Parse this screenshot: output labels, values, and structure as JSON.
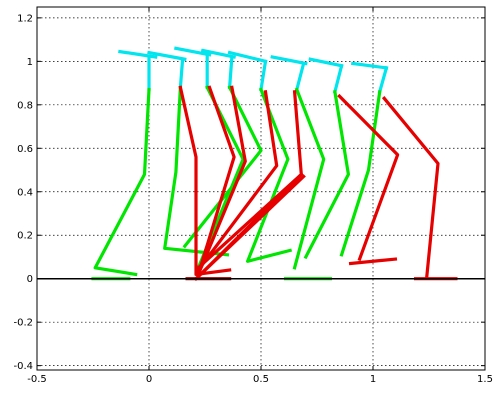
{
  "chart_data": {
    "type": "line",
    "title": "",
    "xlabel": "",
    "ylabel": "",
    "xlim": [
      -0.5,
      1.5
    ],
    "ylim": [
      -0.42,
      1.25
    ],
    "grid": true,
    "x_ticks": [
      "-0.5",
      "0",
      "0.5",
      "1",
      "1.5"
    ],
    "x_tick_values": [
      -0.5,
      0,
      0.5,
      1,
      1.5
    ],
    "y_ticks": [
      "-0.4",
      "-0.2",
      "0",
      "0.2",
      "0.4",
      "0.6",
      "0.8",
      "1",
      "1.2"
    ],
    "y_tick_values": [
      -0.4,
      -0.2,
      0,
      0.2,
      0.4,
      0.6,
      0.8,
      1,
      1.2
    ],
    "ground_line": {
      "y": 0,
      "color": "#000000"
    },
    "colors": {
      "torso": "#00e5ee",
      "leg_green": "#00e600",
      "leg_red": "#e60000",
      "foot_dark": "#a00000"
    },
    "series": [
      {
        "color": "#00e5ee",
        "segments": [
          [
            [
              -0.13,
              1.045
            ],
            [
              0.03,
              1.02
            ]
          ],
          [
            [
              0.0,
              1.02
            ],
            [
              0.0,
              0.87
            ]
          ],
          [
            [
              0.0,
              1.04
            ],
            [
              0.16,
              1.01
            ]
          ],
          [
            [
              0.15,
              1.01
            ],
            [
              0.14,
              0.88
            ]
          ],
          [
            [
              0.12,
              1.06
            ],
            [
              0.27,
              1.03
            ]
          ],
          [
            [
              0.26,
              1.03
            ],
            [
              0.26,
              0.88
            ]
          ],
          [
            [
              0.24,
              1.05
            ],
            [
              0.38,
              1.02
            ]
          ],
          [
            [
              0.37,
              1.02
            ],
            [
              0.36,
              0.88
            ]
          ],
          [
            [
              0.36,
              1.04
            ],
            [
              0.52,
              1.0
            ]
          ],
          [
            [
              0.52,
              1.0
            ],
            [
              0.5,
              0.87
            ]
          ],
          [
            [
              0.55,
              1.02
            ],
            [
              0.7,
              0.99
            ]
          ],
          [
            [
              0.69,
              0.99
            ],
            [
              0.66,
              0.87
            ]
          ],
          [
            [
              0.72,
              1.01
            ],
            [
              0.86,
              0.98
            ]
          ],
          [
            [
              0.86,
              0.98
            ],
            [
              0.83,
              0.86
            ]
          ],
          [
            [
              0.91,
              0.99
            ],
            [
              1.06,
              0.97
            ]
          ],
          [
            [
              1.06,
              0.97
            ],
            [
              1.03,
              0.86
            ]
          ]
        ]
      },
      {
        "color": "#00e600",
        "segments": [
          [
            [
              0.0,
              0.87
            ],
            [
              -0.02,
              0.48
            ],
            [
              -0.24,
              0.05
            ],
            [
              -0.06,
              0.02
            ]
          ],
          [
            [
              -0.25,
              0.0
            ],
            [
              -0.09,
              0.0
            ]
          ],
          [
            [
              0.14,
              0.88
            ],
            [
              0.12,
              0.49
            ],
            [
              0.07,
              0.14
            ],
            [
              0.35,
              0.11
            ]
          ],
          [
            [
              0.26,
              0.88
            ],
            [
              0.42,
              0.55
            ],
            [
              0.22,
              0.05
            ]
          ],
          [
            [
              0.36,
              0.88
            ],
            [
              0.5,
              0.59
            ],
            [
              0.16,
              0.15
            ]
          ],
          [
            [
              0.5,
              0.87
            ],
            [
              0.62,
              0.55
            ],
            [
              0.44,
              0.08
            ],
            [
              0.63,
              0.13
            ]
          ],
          [
            [
              0.66,
              0.87
            ],
            [
              0.78,
              0.55
            ],
            [
              0.65,
              0.05
            ]
          ],
          [
            [
              0.61,
              0.0
            ],
            [
              0.81,
              0.0
            ]
          ],
          [
            [
              0.83,
              0.86
            ],
            [
              0.89,
              0.48
            ],
            [
              0.7,
              0.1
            ]
          ],
          [
            [
              1.03,
              0.86
            ],
            [
              0.98,
              0.5
            ],
            [
              0.86,
              0.11
            ]
          ]
        ]
      },
      {
        "color": "#e60000",
        "segments": [
          [
            [
              0.14,
              0.88
            ],
            [
              0.21,
              0.56
            ],
            [
              0.21,
              0.02
            ],
            [
              0.36,
              0.04
            ]
          ],
          [
            [
              0.27,
              0.88
            ],
            [
              0.38,
              0.56
            ],
            [
              0.22,
              0.02
            ]
          ],
          [
            [
              0.37,
              0.88
            ],
            [
              0.43,
              0.54
            ],
            [
              0.22,
              0.02
            ]
          ],
          [
            [
              0.52,
              0.86
            ],
            [
              0.57,
              0.52
            ],
            [
              0.22,
              0.04
            ]
          ],
          [
            [
              0.65,
              0.86
            ],
            [
              0.68,
              0.48
            ],
            [
              0.22,
              0.05
            ]
          ],
          [
            [
              0.68,
              0.48
            ],
            [
              0.23,
              0.02
            ]
          ],
          [
            [
              0.69,
              0.47
            ],
            [
              0.21,
              0.0
            ]
          ],
          [
            [
              0.85,
              0.84
            ],
            [
              1.11,
              0.57
            ],
            [
              0.94,
              0.09
            ]
          ],
          [
            [
              1.05,
              0.83
            ],
            [
              1.29,
              0.53
            ],
            [
              1.24,
              0.01
            ]
          ],
          [
            [
              0.9,
              0.07
            ],
            [
              1.1,
              0.09
            ]
          ],
          [
            [
              1.19,
              0.0
            ],
            [
              1.37,
              0.0
            ]
          ]
        ]
      },
      {
        "color": "#a00000",
        "segments": [
          [
            [
              0.17,
              0.0
            ],
            [
              0.36,
              0.0
            ]
          ]
        ]
      }
    ]
  }
}
